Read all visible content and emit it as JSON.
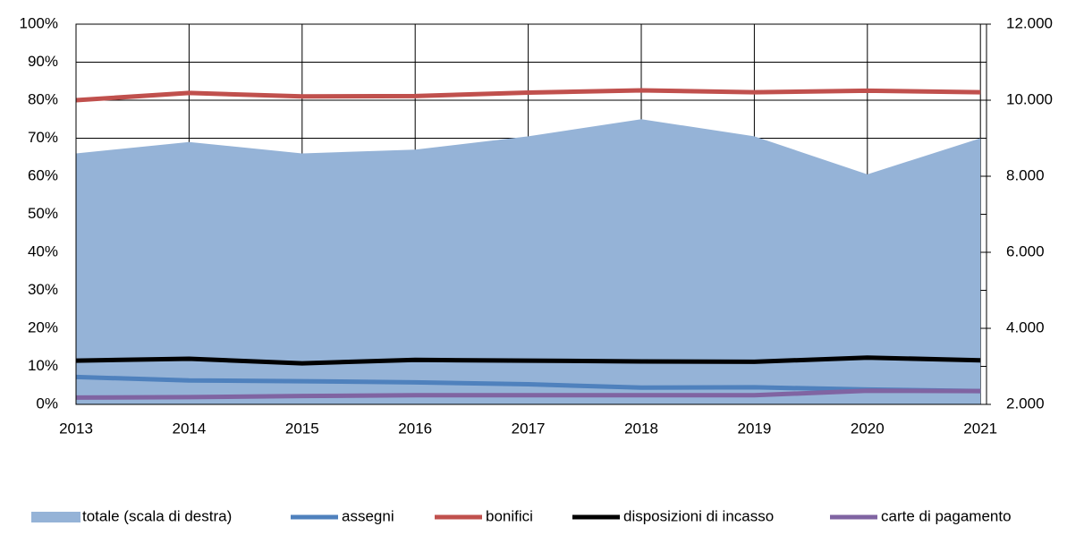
{
  "chart_data": {
    "type": "line",
    "categories": [
      "2013",
      "2014",
      "2015",
      "2016",
      "2017",
      "2018",
      "2019",
      "2020",
      "2021"
    ],
    "series": [
      {
        "name": "totale (scala di destra)",
        "type": "area",
        "axis": "y2",
        "color": "#95b3d7",
        "values": [
          8600,
          8900,
          8600,
          8700,
          9050,
          9500,
          9050,
          8050,
          9000
        ]
      },
      {
        "name": "assegni",
        "color": "#4f81bd",
        "values": [
          7.2,
          6.3,
          6.1,
          5.8,
          5.3,
          4.4,
          4.5,
          3.9,
          3.5
        ]
      },
      {
        "name": "bonifici",
        "color": "#c0504d",
        "values": [
          80,
          81.9,
          81,
          81.1,
          82,
          82.6,
          82.1,
          82.5,
          82.1
        ]
      },
      {
        "name": "disposizioni di incasso",
        "color": "#000000",
        "values": [
          11.5,
          12,
          10.8,
          11.7,
          11.5,
          11.3,
          11.2,
          12.3,
          11.6
        ]
      },
      {
        "name": "carte di pagamento",
        "color": "#8064a2",
        "values": [
          1.8,
          1.9,
          2.2,
          2.4,
          2.4,
          2.4,
          2.4,
          3.6,
          3.5
        ]
      }
    ],
    "ylim": [
      0,
      100
    ],
    "yticks": [
      {
        "value": 0,
        "label": "0%"
      },
      {
        "value": 10,
        "label": "10%"
      },
      {
        "value": 20,
        "label": "20%"
      },
      {
        "value": 30,
        "label": "30%"
      },
      {
        "value": 40,
        "label": "40%"
      },
      {
        "value": 50,
        "label": "50%"
      },
      {
        "value": 60,
        "label": "60%"
      },
      {
        "value": 70,
        "label": "70%"
      },
      {
        "value": 80,
        "label": "80%"
      },
      {
        "value": 90,
        "label": "90%"
      },
      {
        "value": 100,
        "label": "100%"
      }
    ],
    "y2lim": [
      2000,
      12000
    ],
    "y2ticks": [
      {
        "value": 2000,
        "label": "2.000"
      },
      {
        "value": 4000,
        "label": "4.000"
      },
      {
        "value": 6000,
        "label": "6.000"
      },
      {
        "value": 8000,
        "label": "8.000"
      },
      {
        "value": 10000,
        "label": "10.000"
      },
      {
        "value": 12000,
        "label": "12.000"
      }
    ],
    "grid": true,
    "legend": "bottom"
  }
}
